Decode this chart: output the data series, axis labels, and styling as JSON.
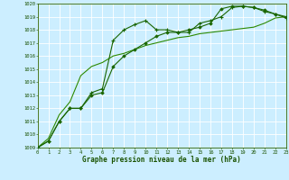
{
  "line1": {
    "x": [
      0,
      1,
      2,
      3,
      4,
      5,
      6,
      7,
      8,
      9,
      10,
      11,
      12,
      13,
      14,
      15,
      16,
      17,
      18,
      19,
      20,
      21,
      22,
      23
    ],
    "y": [
      1009.0,
      1009.5,
      1011.0,
      1012.0,
      1012.0,
      1013.2,
      1013.5,
      1017.2,
      1018.0,
      1018.4,
      1018.7,
      1018.0,
      1018.0,
      1017.8,
      1017.8,
      1018.5,
      1018.7,
      1019.0,
      1019.7,
      1019.8,
      1019.7,
      1019.4,
      1019.2,
      1018.9
    ],
    "color": "#1a6600",
    "marker": "+",
    "linewidth": 0.8,
    "markersize": 3.0
  },
  "line2": {
    "x": [
      0,
      1,
      2,
      3,
      4,
      5,
      6,
      7,
      8,
      9,
      10,
      11,
      12,
      13,
      14,
      15,
      16,
      17,
      18,
      19,
      20,
      21,
      22,
      23
    ],
    "y": [
      1009.0,
      1009.5,
      1011.0,
      1012.0,
      1012.0,
      1013.0,
      1013.2,
      1015.2,
      1016.0,
      1016.5,
      1017.0,
      1017.5,
      1017.8,
      1017.8,
      1018.0,
      1018.2,
      1018.5,
      1019.6,
      1019.8,
      1019.8,
      1019.7,
      1019.5,
      1019.2,
      1019.0
    ],
    "color": "#1a6600",
    "marker": "D",
    "linewidth": 0.8,
    "markersize": 1.8
  },
  "line3": {
    "x": [
      0,
      1,
      2,
      3,
      4,
      5,
      6,
      7,
      8,
      9,
      10,
      11,
      12,
      13,
      14,
      15,
      16,
      17,
      18,
      19,
      20,
      21,
      22,
      23
    ],
    "y": [
      1009.0,
      1009.7,
      1011.5,
      1012.5,
      1014.5,
      1015.2,
      1015.5,
      1016.0,
      1016.2,
      1016.5,
      1016.8,
      1017.0,
      1017.2,
      1017.4,
      1017.5,
      1017.7,
      1017.8,
      1017.9,
      1018.0,
      1018.1,
      1018.2,
      1018.5,
      1018.9,
      1019.0
    ],
    "color": "#2d8a00",
    "linewidth": 0.8
  },
  "ylim": [
    1009,
    1020
  ],
  "xlim": [
    0,
    23
  ],
  "yticks": [
    1009,
    1010,
    1011,
    1012,
    1013,
    1014,
    1015,
    1016,
    1017,
    1018,
    1019,
    1020
  ],
  "xticks": [
    0,
    1,
    2,
    3,
    4,
    5,
    6,
    7,
    8,
    9,
    10,
    11,
    12,
    13,
    14,
    15,
    16,
    17,
    18,
    19,
    20,
    21,
    22,
    23
  ],
  "xlabel": "Graphe pression niveau de la mer (hPa)",
  "bg_color": "#cceeff",
  "grid_color": "#ffffff",
  "text_color": "#1a5200",
  "axis_color": "#336600",
  "tick_fontsize": 4.0,
  "xlabel_fontsize": 5.5
}
